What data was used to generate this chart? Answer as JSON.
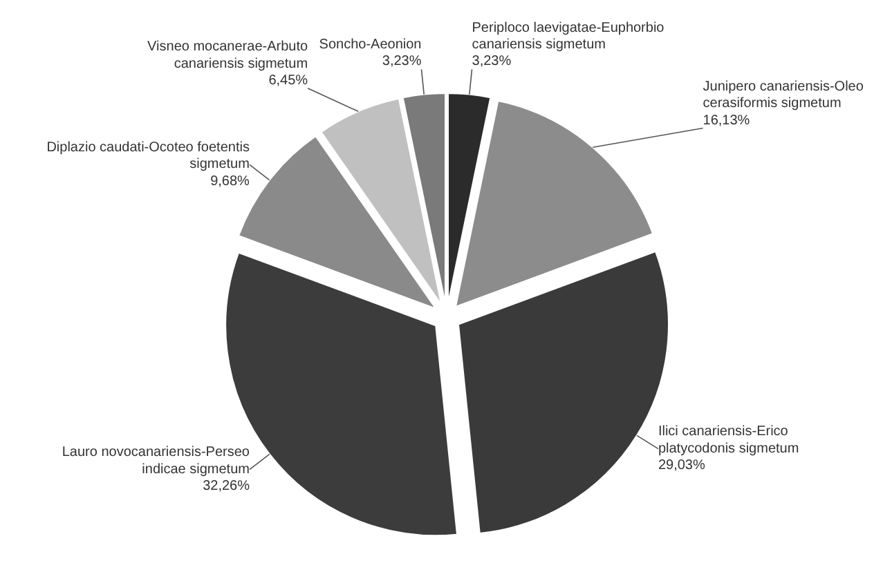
{
  "chart_data": {
    "type": "pie",
    "categories": [
      "Periploco laevigatae-Euphorbio canariensis sigmetum",
      "Junipero canariensis-Oleo cerasiformis sigmetum",
      "Ilici canariensis-Erico platycodonis sigmetum",
      "Lauro novocanariensis-Perseo indicae sigmetum",
      "Diplazio caudati-Ocoteo foetentis sigmetum",
      "Visneo mocanerae-Arbuto canariensis sigmetum",
      "Soncho-Aeonion"
    ],
    "values": [
      3.23,
      16.13,
      29.03,
      32.26,
      9.68,
      6.45,
      3.23
    ],
    "value_labels": [
      "3,23%",
      "16,13%",
      "29,03%",
      "32,26%",
      "9,68%",
      "6,45%",
      "3,23%"
    ],
    "colors": [
      "#2b2b2b",
      "#8c8c8c",
      "#3a3a3a",
      "#3c3c3c",
      "#8a8a8a",
      "#c0c0c0",
      "#7a7a7a"
    ]
  }
}
